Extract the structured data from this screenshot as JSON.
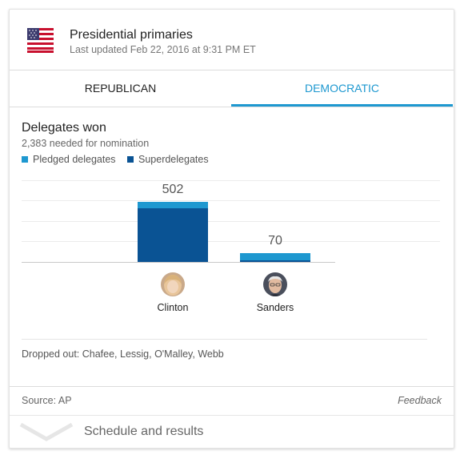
{
  "header": {
    "title": "Presidential primaries",
    "updated": "Last updated Feb 22, 2016 at 9:31 PM ET",
    "flag_icon": "us-flag-icon"
  },
  "tabs": [
    {
      "label": "REPUBLICAN",
      "active": false
    },
    {
      "label": "DEMOCRATIC",
      "active": true
    }
  ],
  "section": {
    "title": "Delegates won",
    "subtitle": "2,383 needed for nomination",
    "legend": [
      {
        "label": "Pledged delegates",
        "color": "#1e98d0"
      },
      {
        "label": "Superdelegates",
        "color": "#0a5394"
      }
    ]
  },
  "chart_data": {
    "type": "bar",
    "stacked": true,
    "categories": [
      "Clinton",
      "Sanders"
    ],
    "series": [
      {
        "name": "Superdelegates",
        "values": [
          451,
          11
        ]
      },
      {
        "name": "Pledged delegates",
        "values": [
          51,
          59
        ]
      }
    ],
    "totals": [
      "502",
      "70"
    ],
    "ylim": [
      0,
      502
    ],
    "grid": true
  },
  "candidates": [
    {
      "name": "Clinton",
      "avatar_icon": "clinton-avatar"
    },
    {
      "name": "Sanders",
      "avatar_icon": "sanders-avatar"
    }
  ],
  "dropped_out": "Dropped out: Chafee, Lessig, O'Malley, Webb",
  "footer": {
    "source": "Source: AP",
    "feedback": "Feedback"
  },
  "schedule": {
    "label": "Schedule and results",
    "icon": "chevron-down-icon"
  },
  "colors": {
    "accent": "#1e98d0",
    "dark_blue": "#0a5394"
  }
}
